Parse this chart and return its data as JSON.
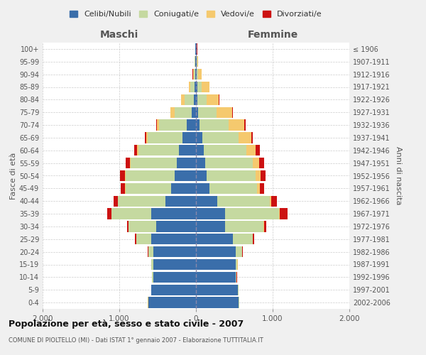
{
  "age_groups": [
    "0-4",
    "5-9",
    "10-14",
    "15-19",
    "20-24",
    "25-29",
    "30-34",
    "35-39",
    "40-44",
    "45-49",
    "50-54",
    "55-59",
    "60-64",
    "65-69",
    "70-74",
    "75-79",
    "80-84",
    "85-89",
    "90-94",
    "95-99",
    "100+"
  ],
  "birth_years": [
    "2002-2006",
    "1997-2001",
    "1992-1996",
    "1987-1991",
    "1982-1986",
    "1977-1981",
    "1972-1976",
    "1967-1971",
    "1962-1966",
    "1957-1961",
    "1952-1956",
    "1947-1951",
    "1942-1946",
    "1937-1941",
    "1932-1936",
    "1927-1931",
    "1922-1926",
    "1917-1921",
    "1912-1916",
    "1907-1911",
    "≤ 1906"
  ],
  "maschi": {
    "celibi": [
      620,
      580,
      560,
      560,
      560,
      580,
      520,
      580,
      400,
      320,
      280,
      250,
      220,
      180,
      120,
      60,
      30,
      20,
      10,
      5,
      5
    ],
    "coniugati": [
      5,
      5,
      10,
      20,
      60,
      200,
      360,
      520,
      620,
      600,
      640,
      600,
      530,
      450,
      360,
      220,
      120,
      50,
      20,
      10,
      5
    ],
    "vedovi": [
      1,
      1,
      1,
      1,
      2,
      2,
      2,
      2,
      3,
      5,
      5,
      10,
      15,
      20,
      30,
      50,
      40,
      20,
      10,
      5,
      2
    ],
    "divorziati": [
      1,
      1,
      2,
      3,
      5,
      10,
      20,
      60,
      50,
      60,
      70,
      60,
      40,
      15,
      10,
      5,
      5,
      5,
      3,
      2,
      1
    ]
  },
  "femmine": {
    "nubili": [
      560,
      550,
      520,
      520,
      520,
      480,
      380,
      380,
      280,
      180,
      140,
      120,
      100,
      80,
      50,
      30,
      20,
      15,
      10,
      5,
      5
    ],
    "coniugate": [
      5,
      5,
      10,
      20,
      80,
      260,
      500,
      700,
      680,
      620,
      640,
      620,
      560,
      480,
      380,
      240,
      120,
      60,
      20,
      10,
      5
    ],
    "vedove": [
      1,
      1,
      2,
      3,
      5,
      5,
      5,
      10,
      20,
      30,
      60,
      80,
      120,
      160,
      200,
      200,
      160,
      100,
      40,
      15,
      3
    ],
    "divorziate": [
      1,
      1,
      2,
      3,
      5,
      10,
      30,
      100,
      80,
      60,
      70,
      70,
      50,
      20,
      15,
      10,
      5,
      5,
      3,
      2,
      1
    ]
  },
  "colors": {
    "celibi_nubili": "#3a6eaa",
    "coniugati_e": "#c5d9a0",
    "vedovi_e": "#f5c96e",
    "divorziati_e": "#cc1111"
  },
  "title": "Popolazione per età, sesso e stato civile - 2007",
  "subtitle": "COMUNE DI PIOLTELLO (MI) - Dati ISTAT 1° gennaio 2007 - Elaborazione TUTTITALIA.IT",
  "xlabel_left": "Maschi",
  "xlabel_right": "Femmine",
  "ylabel_left": "Fasce di età",
  "ylabel_right": "Anni di nascita",
  "xlim": 2000,
  "xticks": [
    -2000,
    -1000,
    0,
    1000,
    2000
  ],
  "xticklabels": [
    "2.000",
    "1.000",
    "0",
    "1.000",
    "2.000"
  ],
  "legend_labels": [
    "Celibi/Nubili",
    "Coniugati/e",
    "Vedovi/e",
    "Divorziati/e"
  ],
  "background_color": "#f0f0f0",
  "plot_background": "#ffffff"
}
